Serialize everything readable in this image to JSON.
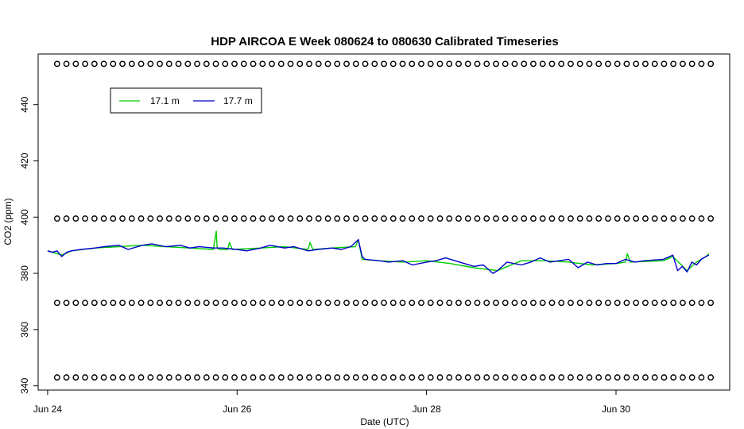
{
  "chart_data": {
    "type": "line",
    "title": "HDP AIRCOA E  Week 080624 to 080630  Calibrated Timeseries",
    "xlabel": "Date (UTC)",
    "ylabel": "CO2 (ppm)",
    "xlim": [
      -0.1,
      7.2
    ],
    "ylim": [
      338.5,
      458
    ],
    "x_ticks": [
      {
        "value": 0,
        "label": "Jun 24"
      },
      {
        "value": 2,
        "label": "Jun 26"
      },
      {
        "value": 4,
        "label": "Jun 28"
      },
      {
        "value": 6,
        "label": "Jun 30"
      }
    ],
    "y_ticks": [
      340,
      360,
      380,
      400,
      420,
      440
    ],
    "grid": false,
    "legend_position": "top-left",
    "series": [
      {
        "name": "17.1 m",
        "color": "#00cc00",
        "x": [
          0.0,
          0.1,
          0.15,
          0.25,
          0.5,
          0.75,
          1.0,
          1.25,
          1.5,
          1.75,
          1.78,
          1.79,
          1.82,
          1.9,
          1.92,
          1.95,
          2.25,
          2.5,
          2.75,
          2.77,
          2.8,
          3.0,
          3.25,
          3.28,
          3.32,
          3.5,
          3.75,
          4.0,
          4.25,
          4.5,
          4.75,
          5.0,
          5.25,
          5.5,
          5.75,
          6.0,
          6.1,
          6.12,
          6.15,
          6.5,
          6.6,
          6.75,
          6.85,
          6.95,
          6.98
        ],
        "y": [
          388,
          387,
          386.5,
          388,
          389,
          389.5,
          390,
          389.5,
          389,
          388.5,
          395,
          389,
          388.5,
          388.5,
          391,
          388.5,
          389,
          389.5,
          388.5,
          391,
          388.5,
          389,
          389.5,
          392,
          385,
          384.5,
          384,
          384.5,
          383.5,
          382,
          381,
          384.5,
          384.5,
          384,
          383,
          383.5,
          384,
          387,
          384,
          384.5,
          386,
          381,
          384,
          386,
          387
        ]
      },
      {
        "name": "17.7 m",
        "color": "#0000cc",
        "x": [
          0.0,
          0.05,
          0.1,
          0.15,
          0.2,
          0.25,
          0.35,
          0.5,
          0.6,
          0.75,
          0.85,
          1.0,
          1.1,
          1.25,
          1.4,
          1.5,
          1.6,
          1.75,
          1.85,
          2.0,
          2.1,
          2.25,
          2.35,
          2.5,
          2.6,
          2.75,
          2.85,
          3.0,
          3.1,
          3.2,
          3.28,
          3.32,
          3.35,
          3.5,
          3.6,
          3.75,
          3.85,
          4.0,
          4.1,
          4.2,
          4.35,
          4.5,
          4.6,
          4.7,
          4.75,
          4.85,
          5.0,
          5.1,
          5.2,
          5.3,
          5.5,
          5.6,
          5.7,
          5.8,
          5.9,
          6.0,
          6.1,
          6.2,
          6.3,
          6.5,
          6.6,
          6.65,
          6.7,
          6.75,
          6.8,
          6.85,
          6.9,
          6.95,
          6.98
        ],
        "y": [
          388,
          387.5,
          388,
          386,
          387.5,
          388,
          388.5,
          389,
          389.5,
          390,
          388.5,
          390,
          390.5,
          389.5,
          390,
          389,
          389.5,
          389,
          389,
          388.5,
          388,
          389,
          390,
          389,
          389.5,
          388,
          388.5,
          389,
          388.5,
          389.5,
          392,
          386,
          385,
          384.5,
          384,
          384.5,
          383,
          384,
          384.5,
          385.5,
          384,
          382.5,
          383,
          380,
          381,
          384,
          383,
          384,
          385.5,
          384,
          385,
          382,
          384,
          383,
          383.5,
          383.5,
          385,
          384,
          384.5,
          385,
          386.5,
          381,
          382.5,
          380.5,
          384,
          383,
          385,
          386,
          386.5
        ]
      }
    ],
    "marker_rows": {
      "marker": "o",
      "y_levels": [
        454.5,
        399.5,
        369.5,
        343
      ],
      "x_start": 0.1,
      "x_end": 7.0,
      "count_per_row": 71
    }
  }
}
